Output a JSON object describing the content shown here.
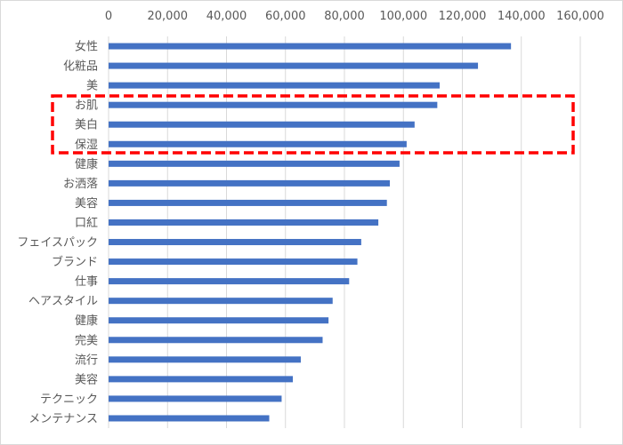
{
  "chart_data": {
    "type": "bar",
    "orientation": "horizontal",
    "title": "",
    "xlabel": "",
    "ylabel": "",
    "xlim": [
      0,
      160000
    ],
    "x_ticks": [
      0,
      20000,
      40000,
      60000,
      80000,
      100000,
      120000,
      140000,
      160000
    ],
    "x_tick_labels": [
      "0",
      "20,000",
      "40,000",
      "60,000",
      "80,000",
      "100,000",
      "120,000",
      "140,000",
      "160,000"
    ],
    "grid": true,
    "categories": [
      "女性",
      "化粧品",
      "美",
      "お肌",
      "美白",
      "保湿",
      "健康",
      "お洒落",
      "美容",
      "口紅",
      "フェイスパック",
      "ブランド",
      "仕事",
      "ヘアスタイル",
      "健康",
      "完美",
      "流行",
      "美容",
      "テクニック",
      "メンテナンス"
    ],
    "values": [
      136500,
      125300,
      112300,
      111500,
      103800,
      101100,
      98700,
      95400,
      94400,
      91500,
      85700,
      84400,
      81600,
      76000,
      74600,
      72600,
      65200,
      62500,
      58700,
      54500
    ],
    "bar_color": "#4472C4",
    "highlight": {
      "categories": [
        "お肌",
        "美白",
        "保湿"
      ],
      "color": "#FF0000",
      "style": "dashed box"
    }
  }
}
